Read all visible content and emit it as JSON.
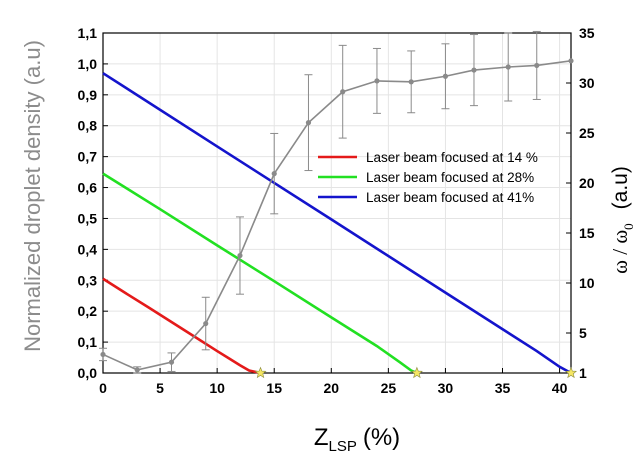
{
  "chart_data": {
    "type": "line",
    "xlabel": "Z",
    "xlabel_sub": "LSP",
    "xlabel_unit": "(%)",
    "ylabel_left": "Normalized droplet density (a.u)",
    "ylabel_right_main": "ω / ω",
    "ylabel_right_sub": "0",
    "ylabel_right_unit": "(a.u)",
    "xlim": [
      0,
      41
    ],
    "ylim_left": [
      0,
      1.1
    ],
    "ylim_right": [
      1,
      35
    ],
    "x_ticks": [
      "0",
      "5",
      "10",
      "15",
      "20",
      "25",
      "30",
      "35",
      "40"
    ],
    "x_tick_values": [
      0,
      5,
      10,
      15,
      20,
      25,
      30,
      35,
      40
    ],
    "y_left_ticks": [
      "0,0",
      "0,1",
      "0,2",
      "0,3",
      "0,4",
      "0,5",
      "0,6",
      "0,7",
      "0,8",
      "0,9",
      "1,0",
      "1,1"
    ],
    "y_left_tick_values": [
      0,
      0.1,
      0.2,
      0.3,
      0.4,
      0.5,
      0.6,
      0.7,
      0.8,
      0.9,
      1.0,
      1.1
    ],
    "y_right_ticks": [
      "1",
      "5",
      "10",
      "15",
      "20",
      "25",
      "30",
      "35"
    ],
    "y_right_tick_values": [
      1,
      5,
      10,
      15,
      20,
      25,
      30,
      35
    ],
    "legend_position": "center-right",
    "series": [
      {
        "name": "Laser beam focused at 14 %",
        "color": "#e41a1a",
        "axis": "left",
        "x": [
          0,
          2,
          4,
          6,
          8,
          10,
          11,
          12,
          12.8,
          13.8
        ],
        "y": [
          0.305,
          0.258,
          0.212,
          0.165,
          0.118,
          0.071,
          0.048,
          0.025,
          0.008,
          0.0
        ]
      },
      {
        "name": "Laser beam focused at 28%",
        "color": "#22e022",
        "axis": "left",
        "x": [
          0,
          5,
          10,
          15,
          20,
          24,
          26,
          27,
          27.5
        ],
        "y": [
          0.645,
          0.53,
          0.413,
          0.297,
          0.18,
          0.087,
          0.035,
          0.008,
          0.0
        ]
      },
      {
        "name": "Laser beam focused at 41%",
        "color": "#1414cc",
        "axis": "left",
        "x": [
          0,
          10,
          20,
          30,
          38,
          40,
          41
        ],
        "y": [
          0.97,
          0.733,
          0.497,
          0.26,
          0.071,
          0.02,
          0.0
        ]
      },
      {
        "name": "",
        "color": "#8a8a8a",
        "axis": "left",
        "x": [
          0,
          3,
          6,
          9,
          12,
          15,
          18,
          21,
          24,
          27,
          30,
          32.5,
          35.5,
          38,
          41
        ],
        "y": [
          0.06,
          0.01,
          0.035,
          0.16,
          0.38,
          0.645,
          0.81,
          0.91,
          0.945,
          0.942,
          0.96,
          0.98,
          0.99,
          0.995,
          1.01
        ],
        "error": [
          0.02,
          0.01,
          0.03,
          0.085,
          0.125,
          0.13,
          0.155,
          0.15,
          0.105,
          0.1,
          0.105,
          0.115,
          0.11,
          0.11,
          0.0
        ]
      }
    ],
    "star_markers": {
      "color": "#f5e663",
      "x": [
        13.8,
        27.5,
        41
      ],
      "y": [
        0,
        0,
        0
      ]
    }
  }
}
